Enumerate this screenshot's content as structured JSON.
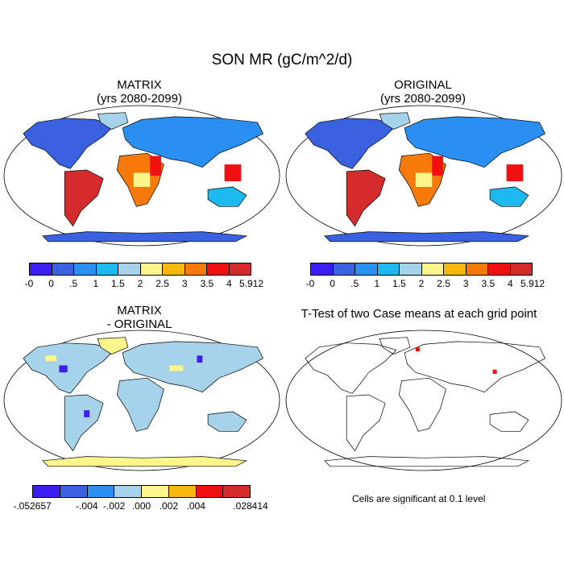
{
  "title": "SON MR (gC/m^2/d)",
  "panels": {
    "matrix": {
      "line1": "MATRIX",
      "line2": "(yrs 2080-2099)"
    },
    "original": {
      "line1": "ORIGINAL",
      "line2": "(yrs 2080-2099)"
    },
    "diff": {
      "line1": "MATRIX",
      "line2": "- ORIGINAL"
    },
    "ttest": {
      "line1": "T-Test of two Case means at each grid point"
    }
  },
  "colorbar_main": {
    "colors": [
      "#3b1ef0",
      "#3a62e0",
      "#2a8ff0",
      "#1cb8f0",
      "#a6d2ea",
      "#fbf58c",
      "#f6b80c",
      "#f57a0a",
      "#f01010",
      "#d42c2c"
    ],
    "labels": [
      "-0",
      "0",
      ".5",
      "1",
      "1.5",
      "2",
      "2.5",
      "3",
      "3.5",
      "4",
      "5.912"
    ]
  },
  "colorbar_diff": {
    "colors": [
      "#3b1ef0",
      "#3a62e0",
      "#2a8ff0",
      "#a6d2ea",
      "#fbf58c",
      "#f6b80c",
      "#f01010",
      "#d42c2c"
    ],
    "labels": [
      "-.052657",
      "",
      "-.004",
      "-.002",
      ".000",
      ".002",
      ".004",
      "",
      ".028414"
    ]
  },
  "ttest_note": "Cells are significant at 0.1 level"
}
